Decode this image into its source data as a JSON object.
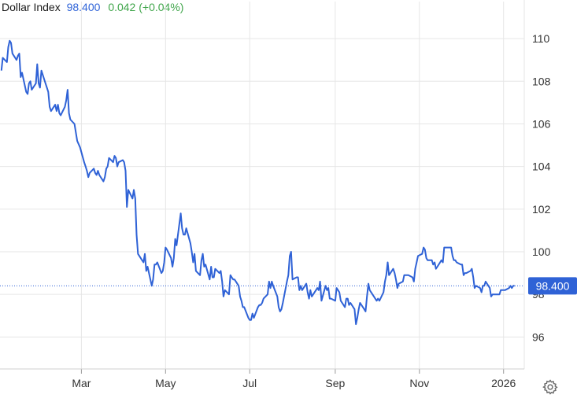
{
  "header": {
    "name": "Dollar Index",
    "price": "98.400",
    "change": "0.042",
    "change_pct": "(+0.04%)"
  },
  "colors": {
    "line": "#2f62d6",
    "change_positive": "#3fa54a",
    "price_label_bg": "#2f62d6",
    "grid": "#e6e6e6"
  },
  "settings_icon": "gear-icon",
  "chart_data": {
    "type": "line",
    "ylim": [
      94.5,
      111
    ],
    "yticks": [
      "96",
      "98",
      "100",
      "102",
      "104",
      "106",
      "108",
      "110"
    ],
    "xlim": [
      "2025-01-01",
      "2026-01-16"
    ],
    "xticks": [
      {
        "label": "Mar",
        "date": "2025-03-01"
      },
      {
        "label": "May",
        "date": "2025-05-01"
      },
      {
        "label": "Jul",
        "date": "2025-07-01"
      },
      {
        "label": "Sep",
        "date": "2025-09-01"
      },
      {
        "label": "Nov",
        "date": "2025-11-01"
      },
      {
        "label": "2026",
        "date": "2026-01-01"
      }
    ],
    "grid": true,
    "last_value": "98.400",
    "series": [
      {
        "points": [
          [
            "2025-01-02",
            108.5
          ],
          [
            "2025-01-03",
            109.1
          ],
          [
            "2025-01-06",
            108.9
          ],
          [
            "2025-01-07",
            109.6
          ],
          [
            "2025-01-08",
            109.9
          ],
          [
            "2025-01-09",
            109.8
          ],
          [
            "2025-01-10",
            109.3
          ],
          [
            "2025-01-13",
            109.0
          ],
          [
            "2025-01-14",
            109.2
          ],
          [
            "2025-01-15",
            109.3
          ],
          [
            "2025-01-16",
            108.2
          ],
          [
            "2025-01-17",
            108.4
          ],
          [
            "2025-01-20",
            107.5
          ],
          [
            "2025-01-21",
            107.4
          ],
          [
            "2025-01-22",
            107.9
          ],
          [
            "2025-01-23",
            108.0
          ],
          [
            "2025-01-24",
            107.6
          ],
          [
            "2025-01-27",
            107.9
          ],
          [
            "2025-01-28",
            108.8
          ],
          [
            "2025-01-29",
            107.9
          ],
          [
            "2025-01-30",
            107.7
          ],
          [
            "2025-01-31",
            108.5
          ],
          [
            "2025-02-03",
            107.9
          ],
          [
            "2025-02-04",
            107.7
          ],
          [
            "2025-02-05",
            107.5
          ],
          [
            "2025-02-06",
            106.8
          ],
          [
            "2025-02-07",
            106.6
          ],
          [
            "2025-02-10",
            106.9
          ],
          [
            "2025-02-11",
            106.6
          ],
          [
            "2025-02-12",
            106.9
          ],
          [
            "2025-02-13",
            106.5
          ],
          [
            "2025-02-14",
            106.4
          ],
          [
            "2025-02-17",
            106.8
          ],
          [
            "2025-02-18",
            107.1
          ],
          [
            "2025-02-19",
            107.6
          ],
          [
            "2025-02-20",
            106.5
          ],
          [
            "2025-02-21",
            106.2
          ],
          [
            "2025-02-24",
            106.0
          ],
          [
            "2025-02-26",
            105.2
          ],
          [
            "2025-02-28",
            104.9
          ],
          [
            "2025-03-03",
            104.2
          ],
          [
            "2025-03-04",
            104.0
          ],
          [
            "2025-03-05",
            103.8
          ],
          [
            "2025-03-06",
            103.5
          ],
          [
            "2025-03-07",
            103.7
          ],
          [
            "2025-03-10",
            103.9
          ],
          [
            "2025-03-11",
            103.7
          ],
          [
            "2025-03-12",
            103.6
          ],
          [
            "2025-03-13",
            103.8
          ],
          [
            "2025-03-14",
            103.6
          ],
          [
            "2025-03-17",
            103.3
          ],
          [
            "2025-03-18",
            103.5
          ],
          [
            "2025-03-19",
            103.9
          ],
          [
            "2025-03-20",
            104.0
          ],
          [
            "2025-03-21",
            104.4
          ],
          [
            "2025-03-24",
            104.2
          ],
          [
            "2025-03-25",
            104.5
          ],
          [
            "2025-03-26",
            104.4
          ],
          [
            "2025-03-27",
            104.0
          ],
          [
            "2025-03-28",
            104.2
          ],
          [
            "2025-03-31",
            104.3
          ],
          [
            "2025-04-01",
            104.2
          ],
          [
            "2025-04-02",
            103.8
          ],
          [
            "2025-04-03",
            102.1
          ],
          [
            "2025-04-04",
            102.9
          ],
          [
            "2025-04-07",
            102.5
          ],
          [
            "2025-04-08",
            102.9
          ],
          [
            "2025-04-09",
            102.5
          ],
          [
            "2025-04-10",
            100.8
          ],
          [
            "2025-04-11",
            99.9
          ],
          [
            "2025-04-14",
            99.6
          ],
          [
            "2025-04-15",
            99.5
          ],
          [
            "2025-04-16",
            99.9
          ],
          [
            "2025-04-17",
            99.1
          ],
          [
            "2025-04-18",
            99.3
          ],
          [
            "2025-04-21",
            98.4
          ],
          [
            "2025-04-22",
            98.7
          ],
          [
            "2025-04-23",
            99.4
          ],
          [
            "2025-04-24",
            99.4
          ],
          [
            "2025-04-25",
            99.5
          ],
          [
            "2025-04-28",
            99.0
          ],
          [
            "2025-04-29",
            99.1
          ],
          [
            "2025-04-30",
            99.5
          ],
          [
            "2025-05-01",
            100.2
          ],
          [
            "2025-05-02",
            100.1
          ],
          [
            "2025-05-05",
            99.7
          ],
          [
            "2025-05-06",
            99.3
          ],
          [
            "2025-05-07",
            99.7
          ],
          [
            "2025-05-08",
            100.6
          ],
          [
            "2025-05-09",
            100.3
          ],
          [
            "2025-05-12",
            101.8
          ],
          [
            "2025-05-13",
            101.1
          ],
          [
            "2025-05-14",
            100.8
          ],
          [
            "2025-05-15",
            100.8
          ],
          [
            "2025-05-16",
            101.1
          ],
          [
            "2025-05-19",
            100.4
          ],
          [
            "2025-05-20",
            100.0
          ],
          [
            "2025-05-21",
            99.5
          ],
          [
            "2025-05-22",
            99.9
          ],
          [
            "2025-05-23",
            99.1
          ],
          [
            "2025-05-26",
            98.9
          ],
          [
            "2025-05-27",
            99.6
          ],
          [
            "2025-05-28",
            99.9
          ],
          [
            "2025-05-29",
            99.3
          ],
          [
            "2025-05-30",
            99.4
          ],
          [
            "2025-06-02",
            98.7
          ],
          [
            "2025-06-03",
            99.3
          ],
          [
            "2025-06-04",
            98.8
          ],
          [
            "2025-06-05",
            98.8
          ],
          [
            "2025-06-06",
            99.2
          ],
          [
            "2025-06-09",
            99.0
          ],
          [
            "2025-06-10",
            99.1
          ],
          [
            "2025-06-11",
            98.6
          ],
          [
            "2025-06-12",
            97.9
          ],
          [
            "2025-06-13",
            98.2
          ],
          [
            "2025-06-16",
            98.0
          ],
          [
            "2025-06-17",
            98.9
          ],
          [
            "2025-06-18",
            98.8
          ],
          [
            "2025-06-19",
            98.7
          ],
          [
            "2025-06-20",
            98.7
          ],
          [
            "2025-06-23",
            98.4
          ],
          [
            "2025-06-24",
            97.9
          ],
          [
            "2025-06-25",
            97.7
          ],
          [
            "2025-06-26",
            97.4
          ],
          [
            "2025-06-27",
            97.4
          ],
          [
            "2025-06-30",
            96.9
          ],
          [
            "2025-07-01",
            96.8
          ],
          [
            "2025-07-02",
            96.8
          ],
          [
            "2025-07-03",
            97.1
          ],
          [
            "2025-07-04",
            96.9
          ],
          [
            "2025-07-07",
            97.4
          ],
          [
            "2025-07-08",
            97.5
          ],
          [
            "2025-07-09",
            97.5
          ],
          [
            "2025-07-10",
            97.6
          ],
          [
            "2025-07-11",
            97.8
          ],
          [
            "2025-07-14",
            98.0
          ],
          [
            "2025-07-15",
            98.6
          ],
          [
            "2025-07-16",
            98.3
          ],
          [
            "2025-07-17",
            98.6
          ],
          [
            "2025-07-18",
            98.4
          ],
          [
            "2025-07-21",
            97.9
          ],
          [
            "2025-07-22",
            97.4
          ],
          [
            "2025-07-23",
            97.2
          ],
          [
            "2025-07-24",
            97.3
          ],
          [
            "2025-07-25",
            97.6
          ],
          [
            "2025-07-28",
            98.6
          ],
          [
            "2025-07-29",
            98.9
          ],
          [
            "2025-07-30",
            99.8
          ],
          [
            "2025-07-31",
            100.0
          ],
          [
            "2025-08-01",
            98.7
          ],
          [
            "2025-08-04",
            98.8
          ],
          [
            "2025-08-05",
            98.8
          ],
          [
            "2025-08-06",
            98.2
          ],
          [
            "2025-08-07",
            98.4
          ],
          [
            "2025-08-08",
            98.2
          ],
          [
            "2025-08-11",
            98.5
          ],
          [
            "2025-08-12",
            98.1
          ],
          [
            "2025-08-13",
            97.8
          ],
          [
            "2025-08-14",
            98.2
          ],
          [
            "2025-08-15",
            97.9
          ],
          [
            "2025-08-18",
            98.2
          ],
          [
            "2025-08-19",
            98.3
          ],
          [
            "2025-08-20",
            98.2
          ],
          [
            "2025-08-21",
            98.6
          ],
          [
            "2025-08-22",
            97.7
          ],
          [
            "2025-08-25",
            98.4
          ],
          [
            "2025-08-26",
            98.2
          ],
          [
            "2025-08-27",
            98.3
          ],
          [
            "2025-08-28",
            97.8
          ],
          [
            "2025-08-29",
            97.8
          ],
          [
            "2025-09-01",
            97.7
          ],
          [
            "2025-09-02",
            98.3
          ],
          [
            "2025-09-03",
            98.2
          ],
          [
            "2025-09-04",
            98.1
          ],
          [
            "2025-09-05",
            97.7
          ],
          [
            "2025-09-08",
            97.4
          ],
          [
            "2025-09-09",
            97.8
          ],
          [
            "2025-09-10",
            97.8
          ],
          [
            "2025-09-11",
            97.5
          ],
          [
            "2025-09-12",
            97.6
          ],
          [
            "2025-09-15",
            97.3
          ],
          [
            "2025-09-16",
            96.6
          ],
          [
            "2025-09-17",
            96.9
          ],
          [
            "2025-09-18",
            97.3
          ],
          [
            "2025-09-19",
            97.6
          ],
          [
            "2025-09-22",
            97.3
          ],
          [
            "2025-09-23",
            97.2
          ],
          [
            "2025-09-24",
            97.9
          ],
          [
            "2025-09-25",
            98.5
          ],
          [
            "2025-09-26",
            98.2
          ],
          [
            "2025-09-29",
            97.9
          ],
          [
            "2025-09-30",
            97.8
          ],
          [
            "2025-10-01",
            97.7
          ],
          [
            "2025-10-02",
            97.8
          ],
          [
            "2025-10-03",
            97.7
          ],
          [
            "2025-10-06",
            98.1
          ],
          [
            "2025-10-07",
            98.6
          ],
          [
            "2025-10-08",
            98.9
          ],
          [
            "2025-10-09",
            99.5
          ],
          [
            "2025-10-10",
            98.9
          ],
          [
            "2025-10-13",
            99.2
          ],
          [
            "2025-10-14",
            99.0
          ],
          [
            "2025-10-15",
            98.7
          ],
          [
            "2025-10-16",
            98.3
          ],
          [
            "2025-10-17",
            98.5
          ],
          [
            "2025-10-20",
            98.6
          ],
          [
            "2025-10-21",
            98.9
          ],
          [
            "2025-10-22",
            98.9
          ],
          [
            "2025-10-23",
            98.9
          ],
          [
            "2025-10-24",
            98.9
          ],
          [
            "2025-10-27",
            98.8
          ],
          [
            "2025-10-28",
            98.6
          ],
          [
            "2025-10-29",
            99.2
          ],
          [
            "2025-10-30",
            99.5
          ],
          [
            "2025-10-31",
            99.8
          ],
          [
            "2025-11-03",
            99.9
          ],
          [
            "2025-11-04",
            100.2
          ],
          [
            "2025-11-05",
            100.1
          ],
          [
            "2025-11-06",
            99.7
          ],
          [
            "2025-11-07",
            99.6
          ],
          [
            "2025-11-10",
            99.6
          ],
          [
            "2025-11-11",
            99.4
          ],
          [
            "2025-11-12",
            99.5
          ],
          [
            "2025-11-13",
            99.2
          ],
          [
            "2025-11-14",
            99.3
          ],
          [
            "2025-11-17",
            99.6
          ],
          [
            "2025-11-18",
            99.5
          ],
          [
            "2025-11-19",
            100.2
          ],
          [
            "2025-11-20",
            100.2
          ],
          [
            "2025-11-21",
            100.2
          ],
          [
            "2025-11-24",
            100.2
          ],
          [
            "2025-11-25",
            99.8
          ],
          [
            "2025-11-26",
            99.6
          ],
          [
            "2025-11-27",
            99.6
          ],
          [
            "2025-11-28",
            99.5
          ],
          [
            "2025-12-01",
            99.4
          ],
          [
            "2025-12-02",
            99.4
          ],
          [
            "2025-12-03",
            98.9
          ],
          [
            "2025-12-04",
            99.0
          ],
          [
            "2025-12-05",
            99.0
          ],
          [
            "2025-12-08",
            99.1
          ],
          [
            "2025-12-09",
            99.2
          ],
          [
            "2025-12-10",
            98.8
          ],
          [
            "2025-12-11",
            98.3
          ],
          [
            "2025-12-12",
            98.4
          ],
          [
            "2025-12-15",
            98.3
          ],
          [
            "2025-12-16",
            98.1
          ],
          [
            "2025-12-17",
            98.4
          ],
          [
            "2025-12-18",
            98.4
          ],
          [
            "2025-12-19",
            98.6
          ],
          [
            "2025-12-22",
            98.3
          ],
          [
            "2025-12-23",
            97.9
          ],
          [
            "2025-12-24",
            98.0
          ],
          [
            "2025-12-26",
            98.0
          ],
          [
            "2025-12-29",
            98.0
          ],
          [
            "2025-12-30",
            98.2
          ],
          [
            "2025-12-31",
            98.2
          ],
          [
            "2026-01-02",
            98.2
          ],
          [
            "2026-01-05",
            98.3
          ],
          [
            "2026-01-06",
            98.4
          ],
          [
            "2026-01-07",
            98.3
          ],
          [
            "2026-01-08",
            98.4
          ],
          [
            "2026-01-09",
            98.4
          ]
        ]
      }
    ]
  }
}
